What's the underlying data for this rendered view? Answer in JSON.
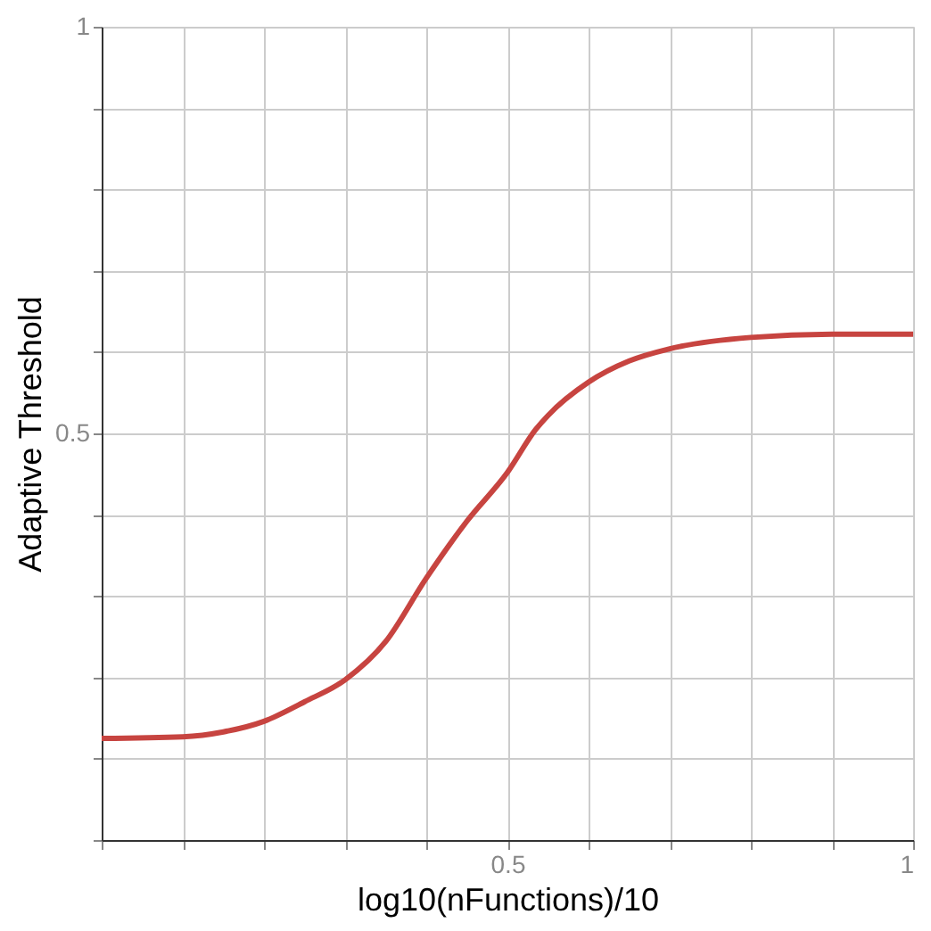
{
  "chart_data": {
    "type": "line",
    "xlabel": "log10(nFunctions)/10",
    "ylabel": "Adaptive Threshold",
    "x": [
      0,
      0.1,
      0.15,
      0.2,
      0.25,
      0.3,
      0.35,
      0.4,
      0.45,
      0.5,
      0.535,
      0.55,
      0.6,
      0.65,
      0.7,
      0.8,
      0.9,
      1.0
    ],
    "series": [
      {
        "color": "#c74440",
        "values": [
          0.125,
          0.127,
          0.133,
          0.146,
          0.17,
          0.197,
          0.244,
          0.322,
          0.392,
          0.452,
          0.505,
          0.522,
          0.563,
          0.589,
          0.604,
          0.618,
          0.622,
          0.622
        ]
      }
    ],
    "xlim": [
      0,
      1
    ],
    "ylim": [
      0,
      1
    ],
    "xticks": [
      {
        "value": 0,
        "label": null
      },
      {
        "value": 0.1,
        "label": null
      },
      {
        "value": 0.2,
        "label": null
      },
      {
        "value": 0.3,
        "label": null
      },
      {
        "value": 0.4,
        "label": null
      },
      0.5,
      {
        "value": 0.6,
        "label": null
      },
      {
        "value": 0.7,
        "label": null
      },
      {
        "value": 0.8,
        "label": null
      },
      {
        "value": 0.9,
        "label": null
      },
      1
    ],
    "yticks": [
      {
        "value": 0,
        "label": null
      },
      {
        "value": 0.1,
        "label": null
      },
      {
        "value": 0.2,
        "label": null
      },
      {
        "value": 0.3,
        "label": null
      },
      {
        "value": 0.4,
        "label": null
      },
      0.5,
      {
        "value": 0.6,
        "label": null
      },
      {
        "value": 0.7,
        "label": null
      },
      {
        "value": 0.8,
        "label": null
      },
      {
        "value": 0.9,
        "label": null
      },
      1
    ],
    "grid": true,
    "legend": false,
    "marker": "none",
    "line_style": "solid"
  }
}
